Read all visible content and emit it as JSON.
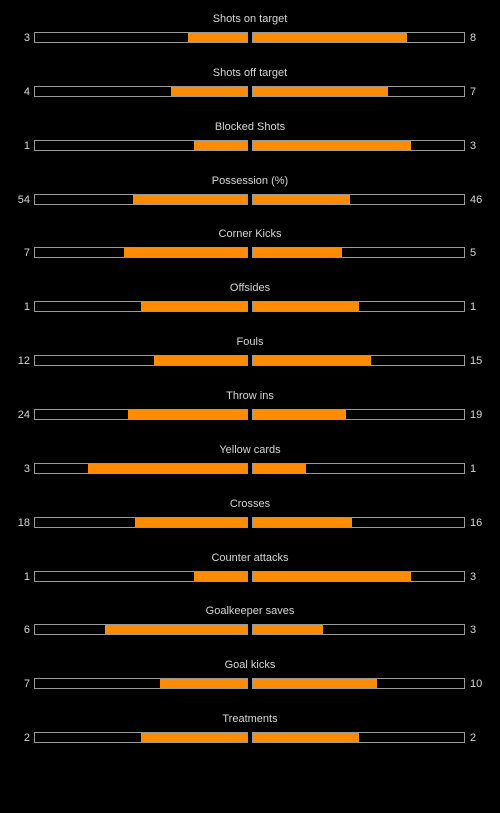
{
  "colors": {
    "background": "#000000",
    "text": "#d6d6d6",
    "bar_fill": "#ff8c00",
    "bar_border": "#9a9a9a"
  },
  "stats": [
    {
      "label": "Shots on target",
      "home": "3",
      "away": "8",
      "home_fill": 0.28,
      "away_fill": 0.73
    },
    {
      "label": "Shots off target",
      "home": "4",
      "away": "7",
      "home_fill": 0.36,
      "away_fill": 0.64
    },
    {
      "label": "Blocked Shots",
      "home": "1",
      "away": "3",
      "home_fill": 0.25,
      "away_fill": 0.75
    },
    {
      "label": "Possession (%)",
      "home": "54",
      "away": "46",
      "home_fill": 0.54,
      "away_fill": 0.46
    },
    {
      "label": "Corner Kicks",
      "home": "7",
      "away": "5",
      "home_fill": 0.58,
      "away_fill": 0.42
    },
    {
      "label": "Offsides",
      "home": "1",
      "away": "1",
      "home_fill": 0.5,
      "away_fill": 0.5
    },
    {
      "label": "Fouls",
      "home": "12",
      "away": "15",
      "home_fill": 0.44,
      "away_fill": 0.56
    },
    {
      "label": "Throw ins",
      "home": "24",
      "away": "19",
      "home_fill": 0.56,
      "away_fill": 0.44
    },
    {
      "label": "Yellow cards",
      "home": "3",
      "away": "1",
      "home_fill": 0.75,
      "away_fill": 0.25
    },
    {
      "label": "Crosses",
      "home": "18",
      "away": "16",
      "home_fill": 0.53,
      "away_fill": 0.47
    },
    {
      "label": "Counter attacks",
      "home": "1",
      "away": "3",
      "home_fill": 0.25,
      "away_fill": 0.75
    },
    {
      "label": "Goalkeeper saves",
      "home": "6",
      "away": "3",
      "home_fill": 0.67,
      "away_fill": 0.33
    },
    {
      "label": "Goal kicks",
      "home": "7",
      "away": "10",
      "home_fill": 0.41,
      "away_fill": 0.59
    },
    {
      "label": "Treatments",
      "home": "2",
      "away": "2",
      "home_fill": 0.5,
      "away_fill": 0.5
    }
  ]
}
